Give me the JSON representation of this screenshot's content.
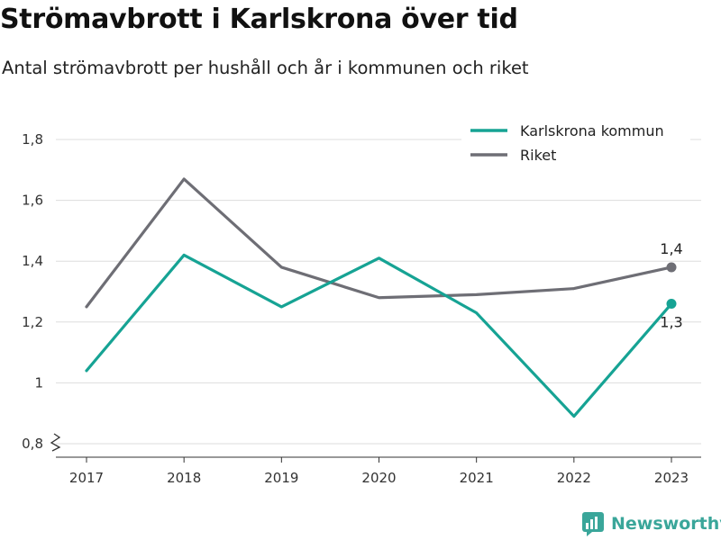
{
  "title": "Strömavbrott i Karlskrona över tid",
  "subtitle": "Antal strömavbrott per hushåll och år i kommunen och riket",
  "brand": "Newsworthy",
  "colors": {
    "kommun": "#16a394",
    "riket": "#6e6e75",
    "grid": "#dddddd",
    "axis": "#333333",
    "brand": "#3aa69a"
  },
  "chart_data": {
    "type": "line",
    "x": [
      "2017",
      "2018",
      "2019",
      "2020",
      "2021",
      "2022",
      "2023"
    ],
    "series": [
      {
        "name": "Karlskrona kommun",
        "values": [
          1.04,
          1.42,
          1.25,
          1.41,
          1.23,
          0.89,
          1.26
        ],
        "end_label": "1,3"
      },
      {
        "name": "Riket",
        "values": [
          1.25,
          1.67,
          1.38,
          1.28,
          1.29,
          1.31,
          1.38
        ],
        "end_label": "1,4"
      }
    ],
    "y_ticks": [
      "0,8",
      "1",
      "1,2",
      "1,4",
      "1,6",
      "1,8"
    ],
    "ylim": [
      0.8,
      1.8
    ],
    "y_axis_break": true,
    "grid": true,
    "legend_position": "top-right"
  }
}
